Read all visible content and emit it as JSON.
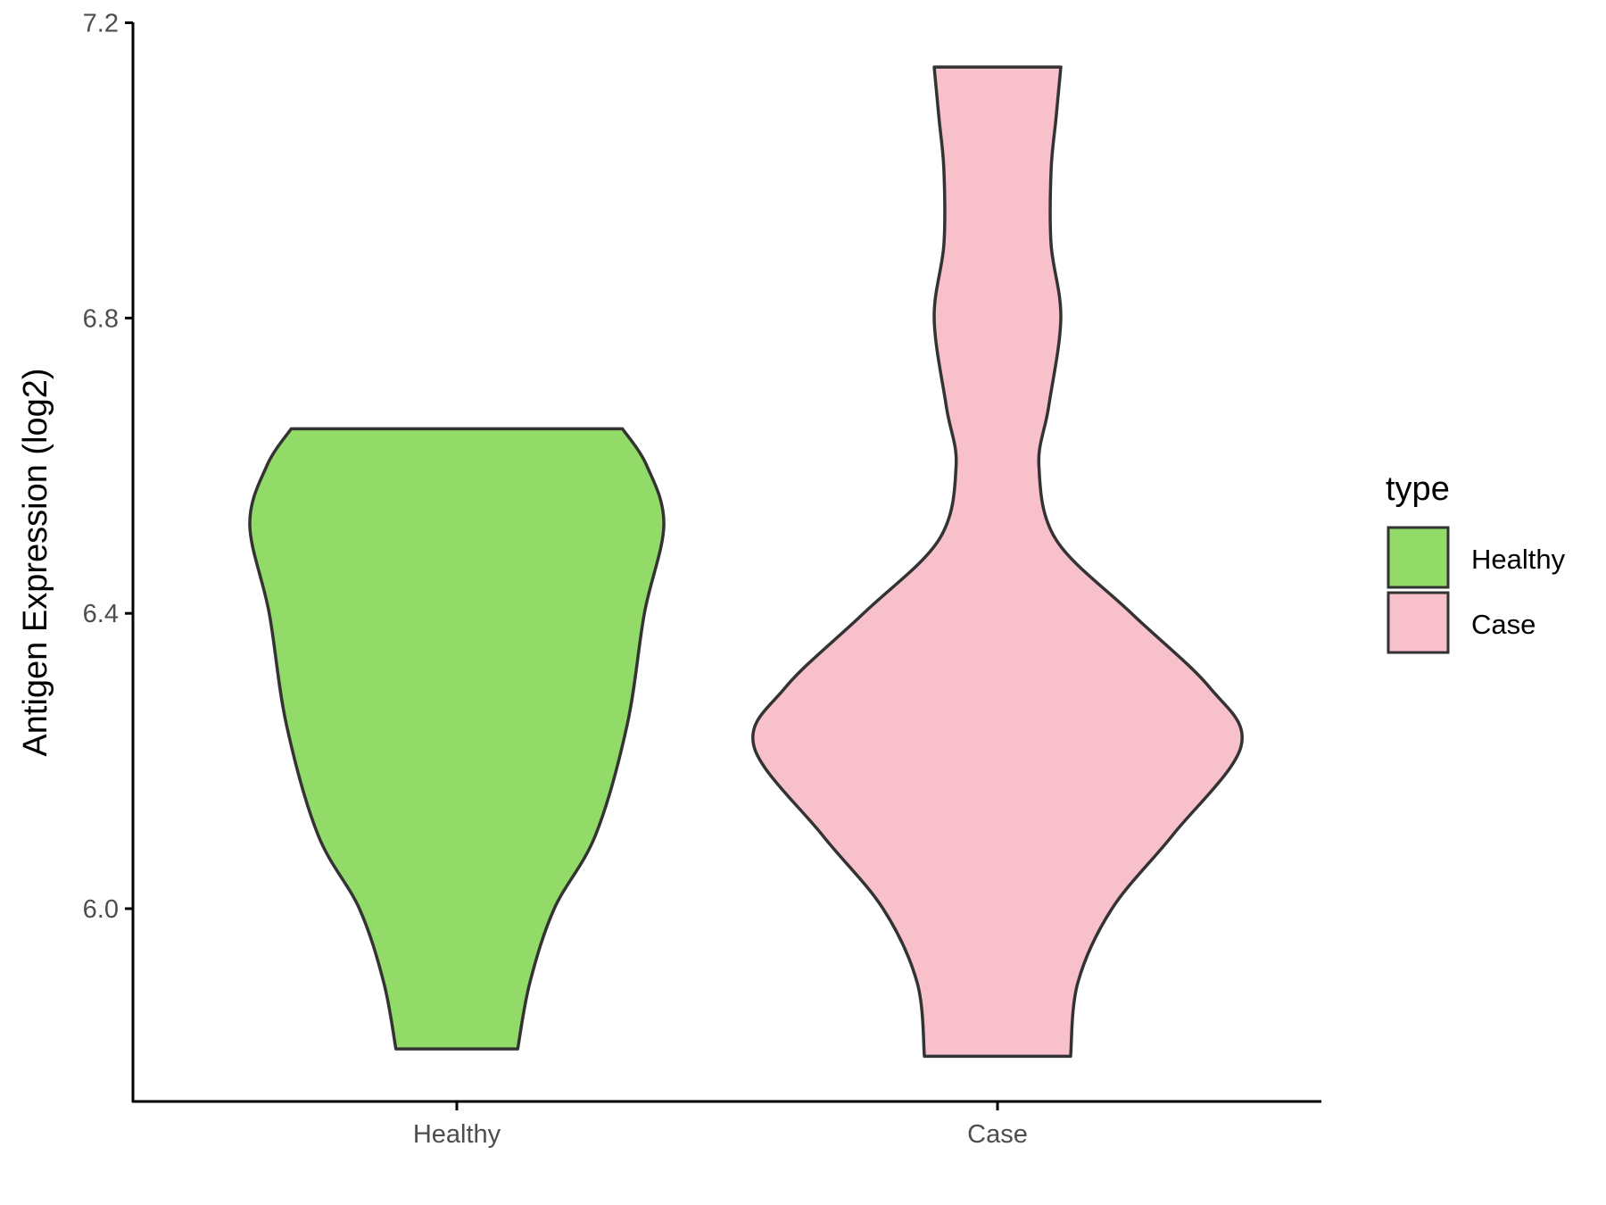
{
  "chart_data": {
    "type": "violin",
    "title": "",
    "xlabel": "",
    "ylabel": "Antigen Expression (log2)",
    "ylim": [
      5.76,
      7.2
    ],
    "yticks": [
      6.0,
      6.4,
      6.8,
      7.2
    ],
    "ytick_labels": [
      "6.0",
      "6.4",
      "6.8",
      "7.2"
    ],
    "categories": [
      "Healthy",
      "Case"
    ],
    "grid": false,
    "legend": {
      "title": "type",
      "position": "right",
      "entries": [
        "Healthy",
        "Case"
      ]
    },
    "series": [
      {
        "name": "Healthy",
        "color": "#93DB69",
        "min": 5.81,
        "max": 6.65,
        "density_profile": [
          [
            5.81,
            0.25
          ],
          [
            5.9,
            0.3
          ],
          [
            6.0,
            0.4
          ],
          [
            6.1,
            0.57
          ],
          [
            6.25,
            0.7
          ],
          [
            6.4,
            0.77
          ],
          [
            6.52,
            0.85
          ],
          [
            6.6,
            0.78
          ],
          [
            6.65,
            0.68
          ]
        ]
      },
      {
        "name": "Case",
        "color": "#F7C0CB",
        "min": 5.8,
        "max": 7.14,
        "density_profile": [
          [
            5.8,
            0.3
          ],
          [
            5.9,
            0.33
          ],
          [
            6.0,
            0.47
          ],
          [
            6.1,
            0.72
          ],
          [
            6.22,
            1.0
          ],
          [
            6.3,
            0.87
          ],
          [
            6.4,
            0.55
          ],
          [
            6.5,
            0.24
          ],
          [
            6.6,
            0.17
          ],
          [
            6.68,
            0.21
          ],
          [
            6.8,
            0.26
          ],
          [
            6.9,
            0.22
          ],
          [
            7.0,
            0.22
          ],
          [
            7.07,
            0.24
          ],
          [
            7.14,
            0.26
          ]
        ]
      }
    ]
  },
  "colors": {
    "outline": "#333333",
    "axis": "#000000"
  }
}
